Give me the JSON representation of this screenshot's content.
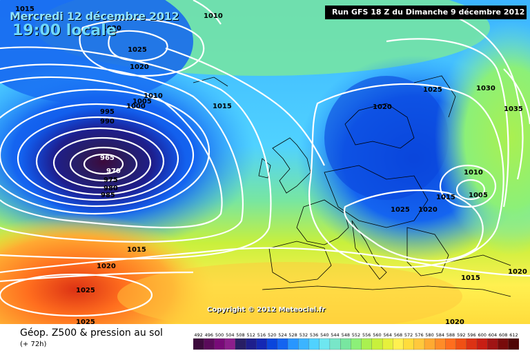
{
  "header": {
    "date_label": "Mercredi 12 décembre 2012",
    "time_label": "19:00 locale",
    "run_label": "Run GFS 18 Z du Dimanche 9 décembre 2012"
  },
  "footer": {
    "title": "Géop. Z500 & pression au sol",
    "subtitle": "(+ 72h)",
    "copyright": "Copyright © 2012 Meteociel.fr"
  },
  "isobar_labels": [
    {
      "id": "l1015a",
      "text": "1015"
    },
    {
      "id": "l1020a",
      "text": "1020"
    },
    {
      "id": "l1025a",
      "text": "1025"
    },
    {
      "id": "l1020b",
      "text": "1020"
    },
    {
      "id": "l1010a",
      "text": "1010"
    },
    {
      "id": "l1010b",
      "text": "1010"
    },
    {
      "id": "l1005a",
      "text": "1005"
    },
    {
      "id": "l1000a",
      "text": "1000"
    },
    {
      "id": "l995",
      "text": "995"
    },
    {
      "id": "l990",
      "text": "990"
    },
    {
      "id": "l965",
      "text": "965"
    },
    {
      "id": "l970",
      "text": "970"
    },
    {
      "id": "l975",
      "text": "975"
    },
    {
      "id": "l980",
      "text": "980"
    },
    {
      "id": "l985",
      "text": "985"
    },
    {
      "id": "l1015b",
      "text": "1015"
    },
    {
      "id": "l1020c",
      "text": "1020"
    },
    {
      "id": "l1025b",
      "text": "1025"
    },
    {
      "id": "l1030",
      "text": "1030"
    },
    {
      "id": "l1035",
      "text": "1035"
    },
    {
      "id": "l1010c",
      "text": "1010"
    },
    {
      "id": "l1005b",
      "text": "1005"
    },
    {
      "id": "l1015c",
      "text": "1015"
    },
    {
      "id": "l1025c",
      "text": "1025"
    },
    {
      "id": "l1020d",
      "text": "1020"
    },
    {
      "id": "l1015d",
      "text": "1015"
    },
    {
      "id": "l1020e",
      "text": "1020"
    },
    {
      "id": "l1025d",
      "text": "1025"
    },
    {
      "id": "l1025e",
      "text": "1025"
    },
    {
      "id": "l1015e",
      "text": "1015"
    },
    {
      "id": "l1020f",
      "text": "1020"
    },
    {
      "id": "l1020g",
      "text": "1020"
    }
  ],
  "scale": {
    "values": [
      "492",
      "496",
      "500",
      "504",
      "508",
      "512",
      "516",
      "520",
      "524",
      "528",
      "532",
      "536",
      "540",
      "544",
      "548",
      "552",
      "556",
      "560",
      "564",
      "568",
      "572",
      "576",
      "580",
      "584",
      "588",
      "592",
      "596",
      "600",
      "604",
      "608",
      "612"
    ],
    "colors": [
      "#3c0a3c",
      "#5a0a5a",
      "#780a78",
      "#8c1e8c",
      "#281e64",
      "#1e1e8c",
      "#1428b4",
      "#0a46dc",
      "#1464f0",
      "#2896ff",
      "#3cb4ff",
      "#50d2ff",
      "#6ee6f0",
      "#78e6c8",
      "#78e6a0",
      "#8cf078",
      "#aaf050",
      "#c8f03c",
      "#e6f03c",
      "#fff050",
      "#ffdc3c",
      "#ffc83c",
      "#ffaa32",
      "#ff8c28",
      "#ff6e1e",
      "#f05014",
      "#dc3214",
      "#c81e14",
      "#a01414",
      "#780a0a",
      "#500505"
    ]
  }
}
